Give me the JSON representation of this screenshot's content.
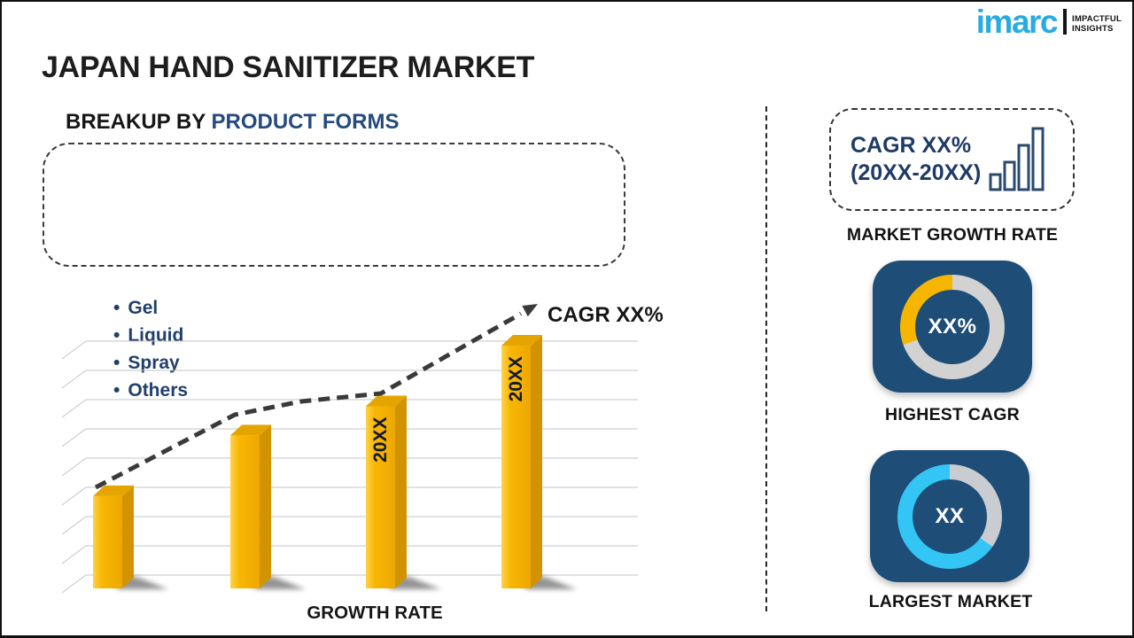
{
  "logo": {
    "brand": "imarc",
    "tagline_line1": "IMPACTFUL",
    "tagline_line2": "INSIGHTS"
  },
  "title": "JAPAN HAND SANITIZER MARKET",
  "breakup": {
    "prefix": "BREAKUP BY ",
    "highlight": "PRODUCT FORMS",
    "bullet_glyph": "•",
    "items": [
      "Gel",
      "Liquid",
      "Spray",
      "Others"
    ]
  },
  "chart_data": {
    "type": "bar",
    "title": "",
    "categories": [
      "",
      "",
      "20XX",
      "20XX"
    ],
    "values": [
      38,
      63,
      75,
      100
    ],
    "bar_labels": [
      "",
      "",
      "20XX",
      "20XX"
    ],
    "xlabel": "GROWTH RATE",
    "ylabel": "",
    "ylim": [
      0,
      100
    ],
    "grid": "horizontal",
    "annotation": "CAGR XX%",
    "trend": "dashed rising arrow over bars",
    "bar_color": "#F7B400"
  },
  "chart": {
    "cagr_label": "CAGR XX%",
    "xlabel": "GROWTH RATE"
  },
  "right_panel": {
    "cagr_box": {
      "line1": "CAGR XX%",
      "line2": "(20XX-20XX)"
    },
    "market_growth_label": "MARKET GROWTH RATE",
    "highest_cagr": {
      "value": "XX%",
      "label": "HIGHEST CAGR",
      "ring_segments": [
        {
          "color": "#D2D2D2",
          "from": 0,
          "to": 250
        },
        {
          "color": "#F6B600",
          "from": 250,
          "to": 360
        }
      ]
    },
    "largest_market": {
      "value": "XX",
      "label": "LARGEST MARKET",
      "ring_segments": [
        {
          "color": "#C9CDD2",
          "from": 0,
          "to": 125
        },
        {
          "color": "#33C6F4",
          "from": 125,
          "to": 360
        }
      ]
    }
  },
  "colors": {
    "logo_blue": "#29ABE2",
    "navy_text": "#1E3A66",
    "card_bg": "#1E4E77",
    "bar_yellow": "#F7B400",
    "cyan": "#33C6F4",
    "ring_gray": "#D2D2D2"
  }
}
